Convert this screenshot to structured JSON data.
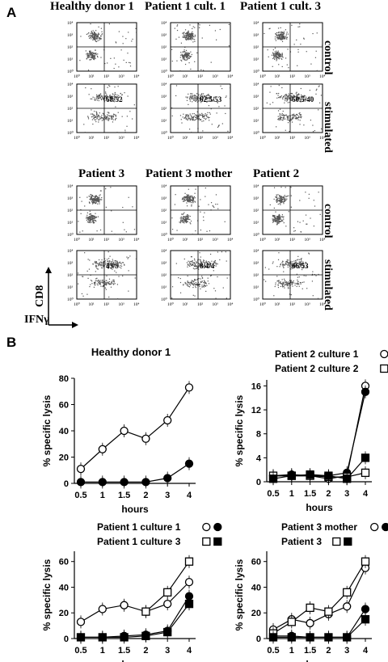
{
  "panel_a": {
    "letter": "A",
    "tick_labels": [
      "10⁰",
      "10¹",
      "10²",
      "10³",
      "10⁴"
    ],
    "rows": [
      {
        "headers": [
          "Healthy donor 1",
          "Patient 1 cult. 1",
          "Patient 1 cult. 3"
        ],
        "plots": [
          {
            "condition": "control",
            "label": ""
          },
          {
            "condition": "control",
            "label": ""
          },
          {
            "condition": "control",
            "label": ""
          },
          {
            "condition": "stimulated",
            "label": "68/52"
          },
          {
            "condition": "stimulated",
            "label": "62.5/53"
          },
          {
            "condition": "stimulated",
            "label": "60.5/40"
          }
        ],
        "row_labels": [
          "control",
          "stimulated"
        ]
      },
      {
        "headers": [
          "Patient 3",
          "Patient 3 mother",
          "Patient 2"
        ],
        "plots": [
          {
            "condition": "control",
            "label": ""
          },
          {
            "condition": "control",
            "label": ""
          },
          {
            "condition": "control",
            "label": ""
          },
          {
            "condition": "stimulated",
            "label": "43/9"
          },
          {
            "condition": "stimulated",
            "label": "8.4/4"
          },
          {
            "condition": "stimulated",
            "label": "66/53"
          }
        ],
        "row_labels": [
          "control",
          "stimulated"
        ]
      }
    ],
    "y_axis": "CD8",
    "x_axis": "IFNγ"
  },
  "panel_b": {
    "letter": "B"
  },
  "chart_data": [
    {
      "type": "line",
      "title": "Healthy donor  1",
      "xlabel": "hours",
      "ylabel": "% specific lysis",
      "x": [
        "0.5",
        "1",
        "1.5",
        "2",
        "3",
        "4"
      ],
      "ylim": [
        0,
        80
      ],
      "yticks": [
        0,
        20,
        40,
        60,
        80
      ],
      "series": [
        {
          "marker": "open-circle",
          "values": [
            11,
            26,
            40,
            34,
            48,
            73
          ]
        },
        {
          "marker": "filled-circle",
          "values": [
            1,
            1,
            1,
            1,
            4,
            15
          ]
        }
      ]
    },
    {
      "type": "line",
      "title": "",
      "xlabel": "hours",
      "ylabel": "% specific lysis",
      "x": [
        "0.5",
        "1",
        "1.5",
        "2",
        "3",
        "4"
      ],
      "ylim": [
        0,
        17
      ],
      "yticks": [
        0,
        4,
        8,
        12,
        16
      ],
      "legend": [
        {
          "name": "Patient 2 culture 1",
          "markers": [
            "open-circle",
            "filled-circle"
          ]
        },
        {
          "name": "Patient 2 culture 2",
          "markers": [
            "open-square",
            "filled-square"
          ]
        }
      ],
      "series": [
        {
          "marker": "open-circle",
          "values": [
            1,
            1,
            1,
            0.5,
            1,
            16
          ]
        },
        {
          "marker": "filled-circle",
          "values": [
            1,
            1.2,
            1,
            1,
            1.5,
            15
          ]
        },
        {
          "marker": "open-square",
          "values": [
            1,
            1,
            1,
            0.8,
            0.8,
            1.5
          ]
        },
        {
          "marker": "filled-square",
          "values": [
            0.5,
            1,
            1.2,
            1,
            0.5,
            4
          ]
        }
      ]
    },
    {
      "type": "line",
      "title": "",
      "xlabel": "hours",
      "ylabel": "% specific lysis",
      "x": [
        "0.5",
        "1",
        "1.5",
        "2",
        "3",
        "4"
      ],
      "ylim": [
        0,
        68
      ],
      "yticks": [
        0,
        20,
        40,
        60
      ],
      "legend": [
        {
          "name": "Patient 1 culture 1",
          "markers": [
            "open-circle",
            "filled-circle"
          ]
        },
        {
          "name": "Patient 1 culture 3",
          "markers": [
            "open-square",
            "filled-square"
          ]
        }
      ],
      "series": [
        {
          "marker": "open-circle",
          "values": [
            13,
            23,
            26,
            21,
            27,
            44
          ]
        },
        {
          "marker": "filled-circle",
          "values": [
            1,
            1,
            2,
            3,
            6,
            33
          ]
        },
        {
          "marker": "open-square",
          "values": [
            null,
            null,
            null,
            21,
            36,
            60
          ]
        },
        {
          "marker": "filled-square",
          "values": [
            1,
            1,
            1,
            2,
            5,
            27
          ]
        }
      ]
    },
    {
      "type": "line",
      "title": "",
      "xlabel": "hours",
      "ylabel": "% specific lysis",
      "x": [
        "0.5",
        "1",
        "1.5",
        "2",
        "3",
        "4"
      ],
      "ylim": [
        0,
        68
      ],
      "yticks": [
        0,
        20,
        40,
        60
      ],
      "legend": [
        {
          "name": "Patient 3 mother",
          "markers": [
            "open-circle",
            "filled-circle"
          ]
        },
        {
          "name": "Patient 3",
          "markers": [
            "open-square",
            "filled-square"
          ]
        }
      ],
      "series": [
        {
          "marker": "open-circle",
          "values": [
            7,
            15,
            12,
            19,
            25,
            55
          ]
        },
        {
          "marker": "filled-circle",
          "values": [
            2,
            2,
            1,
            1,
            1,
            23
          ]
        },
        {
          "marker": "open-square",
          "values": [
            4,
            13,
            24,
            21,
            36,
            60
          ]
        },
        {
          "marker": "filled-square",
          "values": [
            1,
            1,
            1,
            1,
            1,
            15
          ]
        }
      ]
    }
  ]
}
